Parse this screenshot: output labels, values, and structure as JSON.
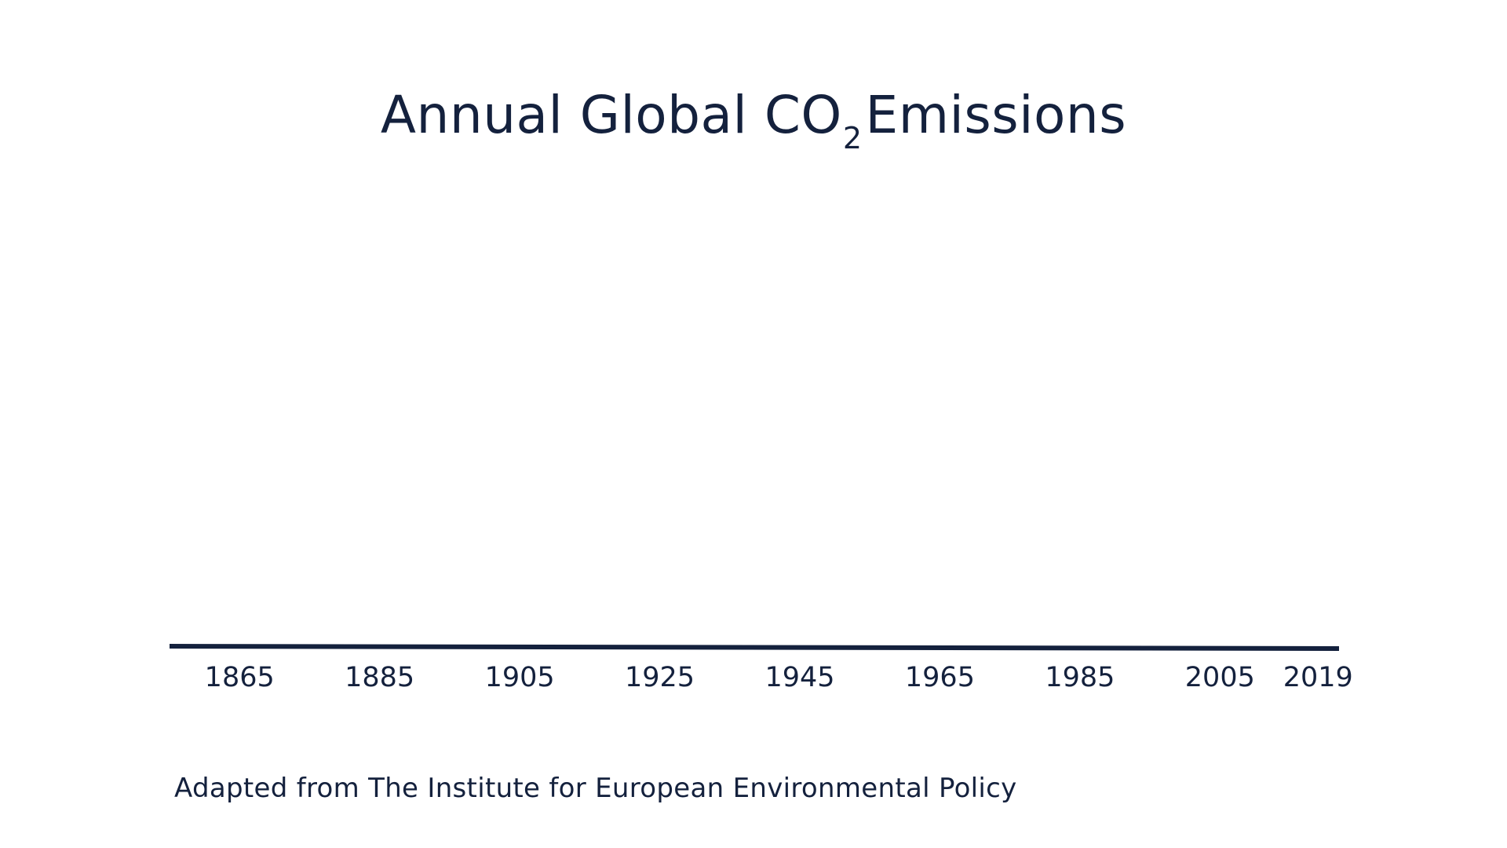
{
  "chart_data": {
    "type": "line",
    "title": {
      "main": "Annual Global CO",
      "subscript": "2",
      "suffix": "Emissions"
    },
    "x_tick_labels": [
      "1865",
      "1885",
      "1905",
      "1925",
      "1945",
      "1965",
      "1985",
      "2005",
      "2019"
    ],
    "xlim": [
      1855,
      2022
    ],
    "series": [],
    "grid": false,
    "axis_color": "#14213d"
  },
  "source": "Adapted from The Institute for European Environmental Policy"
}
